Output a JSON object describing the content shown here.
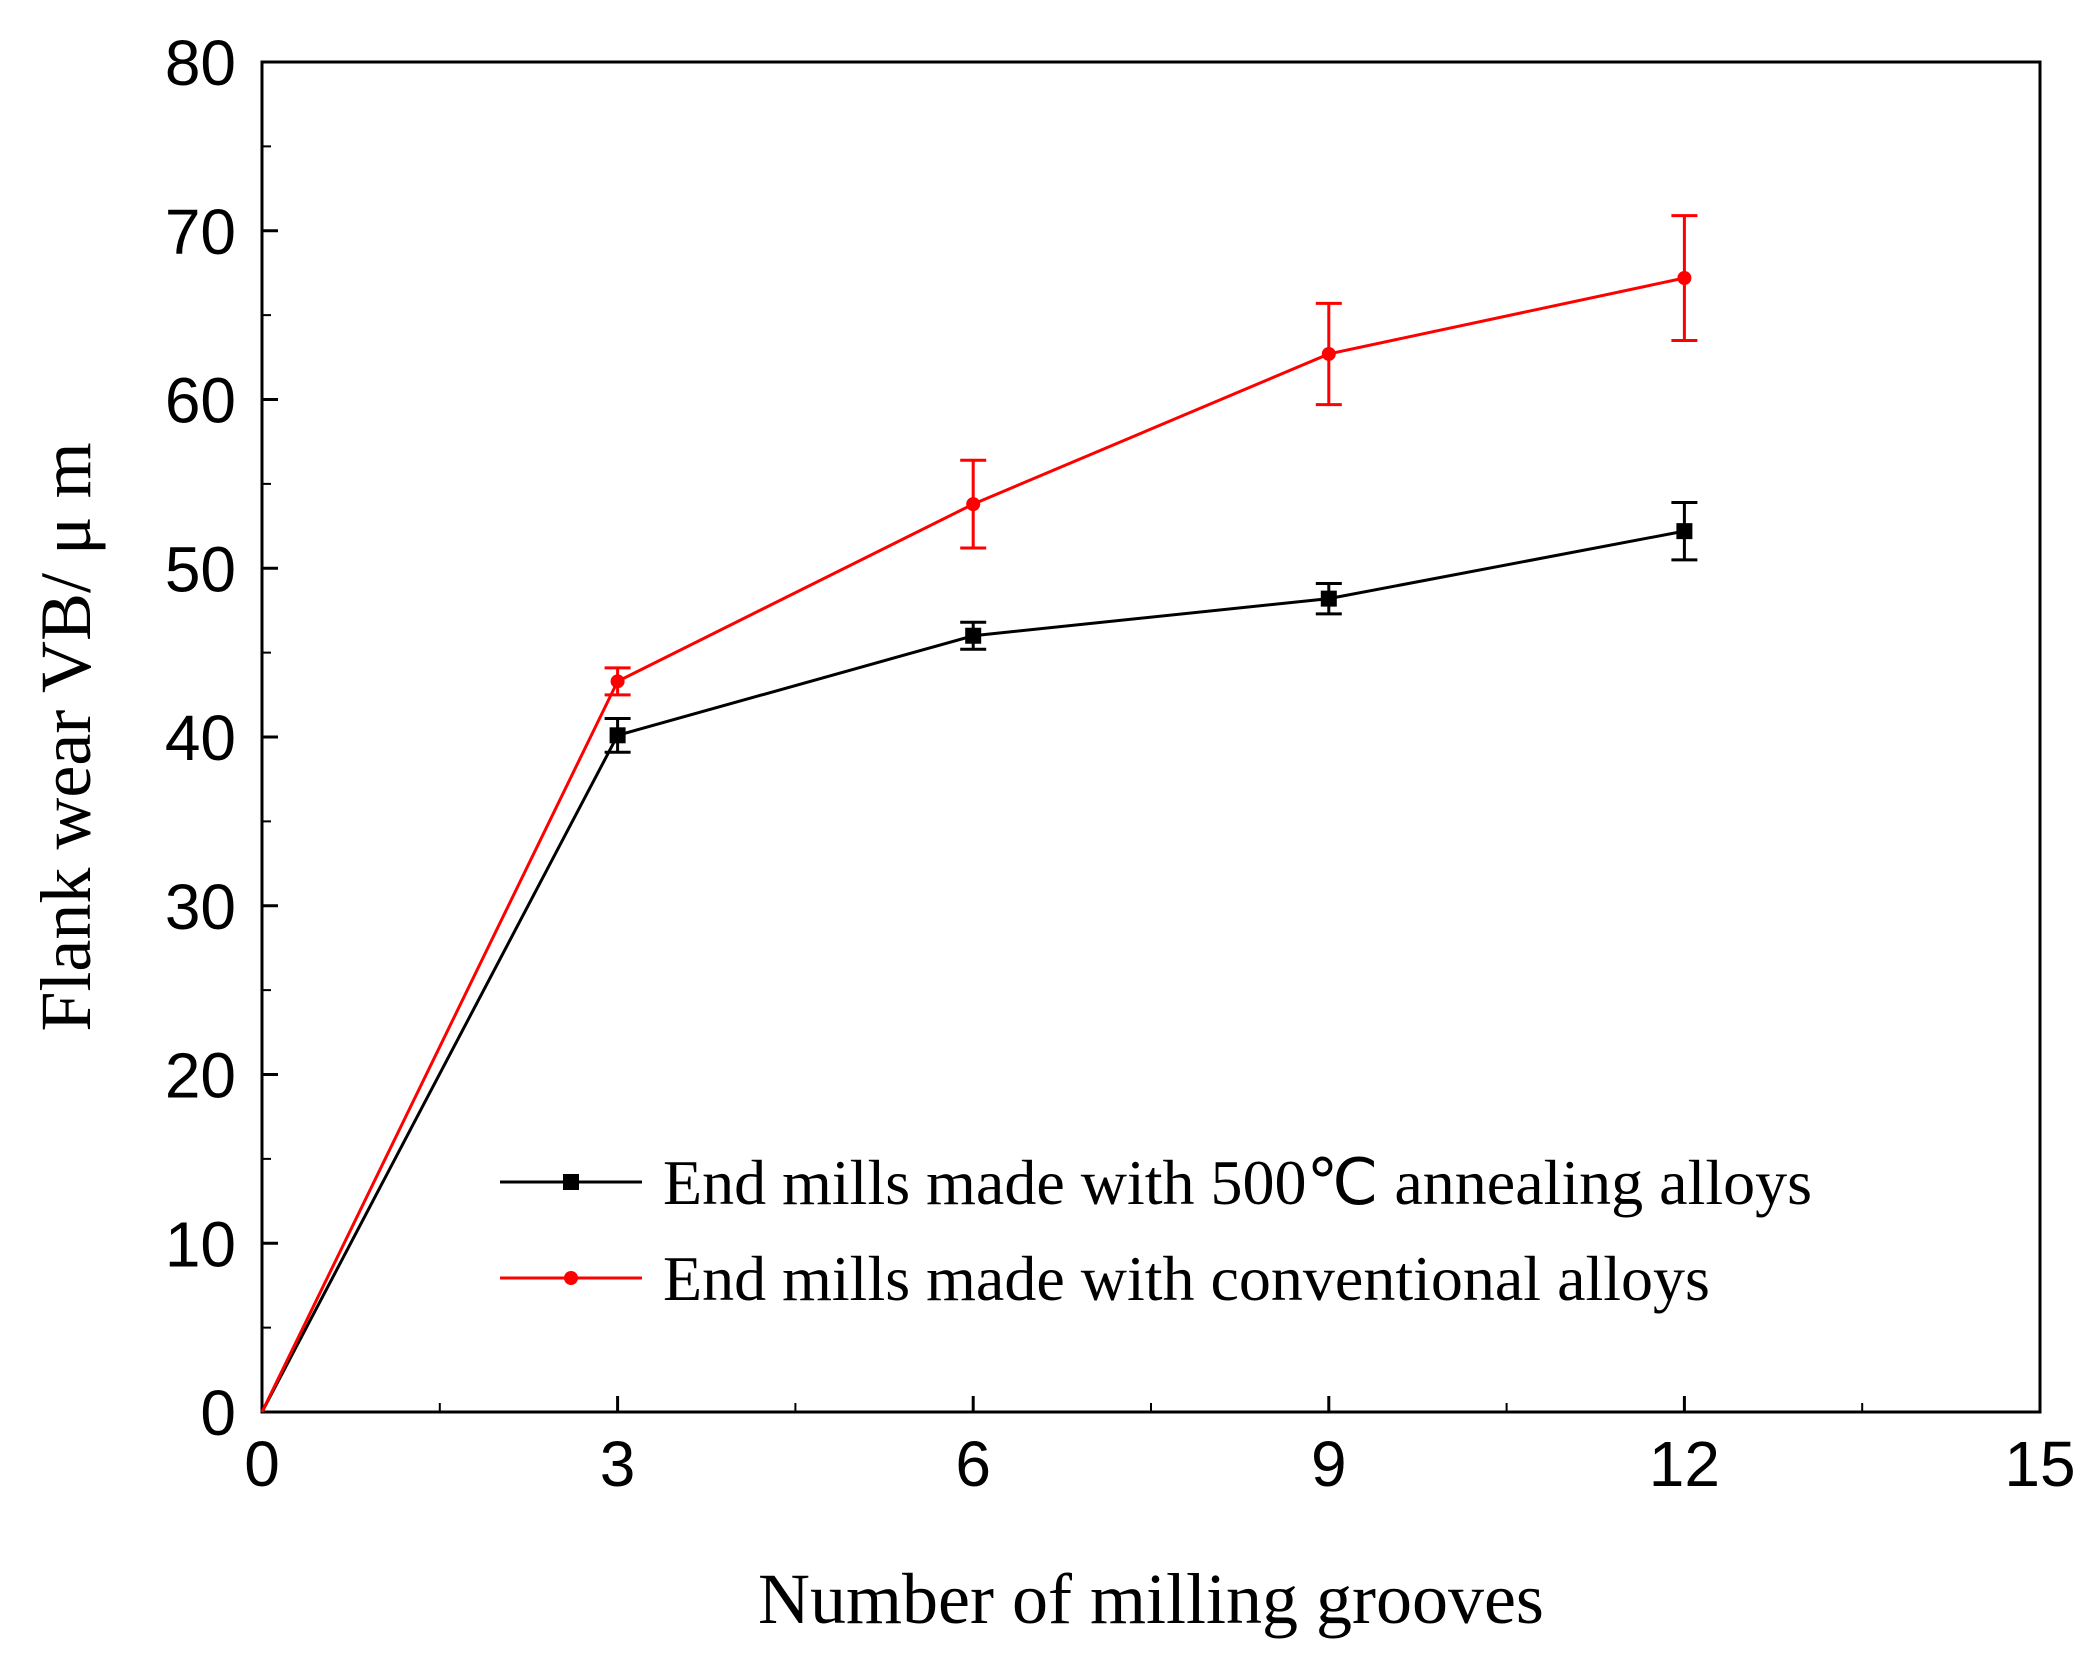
{
  "chart_data": {
    "type": "line",
    "title": "",
    "xlabel": "Number of milling grooves",
    "ylabel": "Flank wear VB/ μ m",
    "xlim": [
      0,
      15
    ],
    "ylim": [
      0,
      80
    ],
    "xticks": [
      0,
      3,
      6,
      9,
      12,
      15
    ],
    "yticks": [
      0,
      10,
      20,
      30,
      40,
      50,
      60,
      70,
      80
    ],
    "grid": false,
    "legend_position": "lower-right",
    "series": [
      {
        "name": "End mills made with 500℃ annealing alloys",
        "color": "#000000",
        "marker": "square",
        "x": [
          0,
          3,
          6,
          9,
          12
        ],
        "y": [
          0,
          40.1,
          46.0,
          48.2,
          52.2
        ],
        "error": [
          0,
          1.0,
          0.8,
          0.9,
          1.7
        ]
      },
      {
        "name": "End mills made with conventional alloys",
        "color": "#ff0000",
        "marker": "circle",
        "x": [
          0,
          3,
          6,
          9,
          12
        ],
        "y": [
          0,
          43.3,
          53.8,
          62.7,
          67.2
        ],
        "error": [
          0,
          0.8,
          2.6,
          3.0,
          3.7
        ]
      }
    ]
  }
}
